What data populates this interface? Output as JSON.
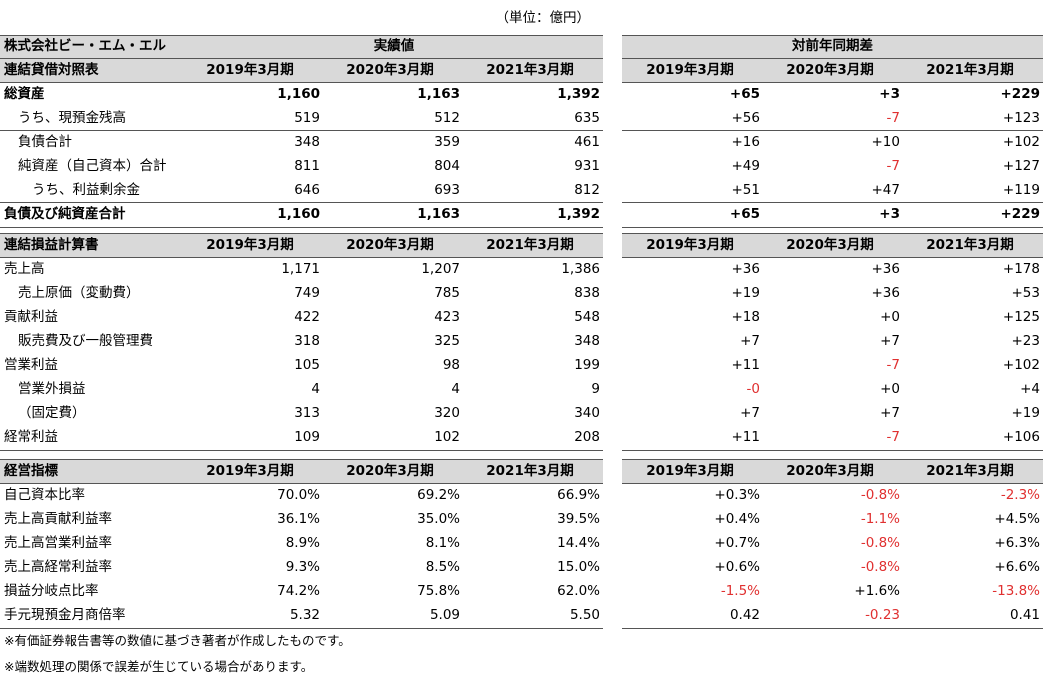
{
  "unit": "（単位：億円）",
  "company": "株式会社ビー・エム・エル",
  "group_headers": [
    "実績値",
    "対前年同期差"
  ],
  "sections": [
    {
      "title": "連結貸借対照表",
      "columns": [
        "2019年3月期",
        "2020年3月期",
        "2021年3月期",
        "2019年3月期",
        "2020年3月期",
        "2021年3月期"
      ],
      "rows": [
        {
          "label": "総資産",
          "values": [
            "1,160",
            "1,163",
            "1,392",
            "+65",
            "+3",
            "+229"
          ]
        },
        {
          "label": "うち、現預金残高",
          "values": [
            "519",
            "512",
            "635",
            "+56",
            "-7",
            "+123"
          ]
        },
        {
          "label": "負債合計",
          "values": [
            "348",
            "359",
            "461",
            "+16",
            "+10",
            "+102"
          ]
        },
        {
          "label": "純資産（自己資本）合計",
          "values": [
            "811",
            "804",
            "931",
            "+49",
            "-7",
            "+127"
          ]
        },
        {
          "label": "うち、利益剰余金",
          "values": [
            "646",
            "693",
            "812",
            "+51",
            "+47",
            "+119"
          ]
        },
        {
          "label": "負債及び純資産合計",
          "values": [
            "1,160",
            "1,163",
            "1,392",
            "+65",
            "+3",
            "+229"
          ]
        }
      ]
    },
    {
      "title": "連結損益計算書",
      "columns": [
        "2019年3月期",
        "2020年3月期",
        "2021年3月期",
        "2019年3月期",
        "2020年3月期",
        "2021年3月期"
      ],
      "rows": [
        {
          "label": "売上高",
          "values": [
            "1,171",
            "1,207",
            "1,386",
            "+36",
            "+36",
            "+178"
          ]
        },
        {
          "label": "売上原価（変動費）",
          "values": [
            "749",
            "785",
            "838",
            "+19",
            "+36",
            "+53"
          ]
        },
        {
          "label": "貢献利益",
          "values": [
            "422",
            "423",
            "548",
            "+18",
            "+0",
            "+125"
          ]
        },
        {
          "label": "販売費及び一般管理費",
          "values": [
            "318",
            "325",
            "348",
            "+7",
            "+7",
            "+23"
          ]
        },
        {
          "label": "営業利益",
          "values": [
            "105",
            "98",
            "199",
            "+11",
            "-7",
            "+102"
          ]
        },
        {
          "label": "営業外損益",
          "values": [
            "4",
            "4",
            "9",
            "-0",
            "+0",
            "+4"
          ]
        },
        {
          "label": "（固定費）",
          "values": [
            "313",
            "320",
            "340",
            "+7",
            "+7",
            "+19"
          ]
        },
        {
          "label": "経常利益",
          "values": [
            "109",
            "102",
            "208",
            "+11",
            "-7",
            "+106"
          ]
        }
      ]
    },
    {
      "title": "経営指標",
      "columns": [
        "2019年3月期",
        "2020年3月期",
        "2021年3月期",
        "2019年3月期",
        "2020年3月期",
        "2021年3月期"
      ],
      "rows": [
        {
          "label": "自己資本比率",
          "values": [
            "70.0%",
            "69.2%",
            "66.9%",
            "+0.3%",
            "-0.8%",
            "-2.3%"
          ]
        },
        {
          "label": "売上高貢献利益率",
          "values": [
            "36.1%",
            "35.0%",
            "39.5%",
            "+0.4%",
            "-1.1%",
            "+4.5%"
          ]
        },
        {
          "label": "売上高営業利益率",
          "values": [
            "8.9%",
            "8.1%",
            "14.4%",
            "+0.7%",
            "-0.8%",
            "+6.3%"
          ]
        },
        {
          "label": "売上高経常利益率",
          "values": [
            "9.3%",
            "8.5%",
            "15.0%",
            "+0.6%",
            "-0.8%",
            "+6.6%"
          ]
        },
        {
          "label": "損益分岐点比率",
          "values": [
            "74.2%",
            "75.8%",
            "62.0%",
            "-1.5%",
            "+1.6%",
            "-13.8%"
          ]
        },
        {
          "label": "手元現預金月商倍率",
          "values": [
            "5.32",
            "5.09",
            "5.50",
            "0.42",
            "-0.23",
            "0.41"
          ]
        }
      ]
    }
  ],
  "notes": [
    "※有価証券報告書等の数値に基づき著者が作成したものです。",
    "※端数処理の関係で誤差が生じている場合があります。"
  ]
}
